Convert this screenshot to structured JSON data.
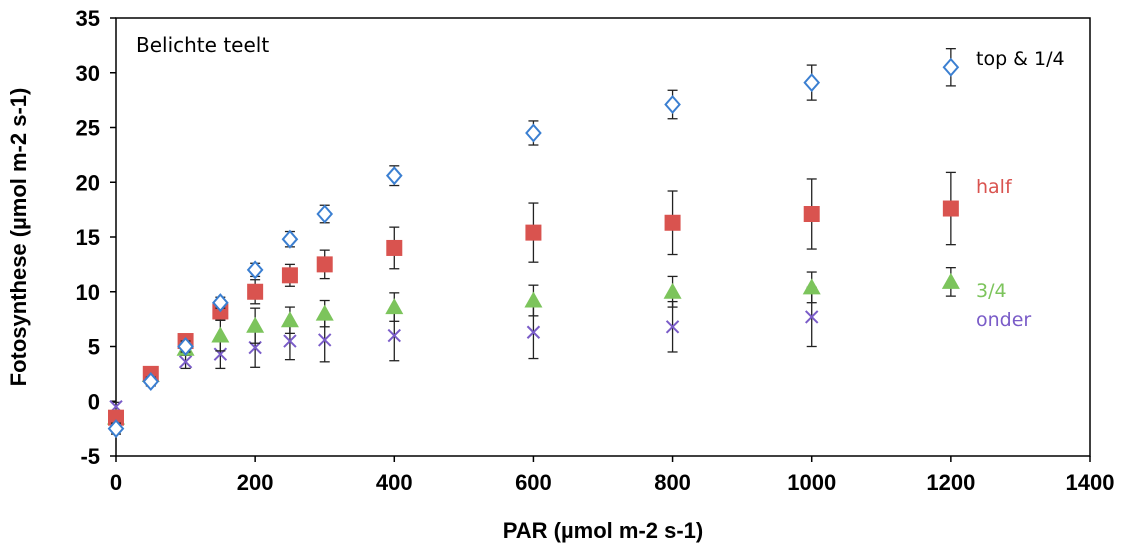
{
  "chart_data": {
    "type": "scatter",
    "title": "Belichte teelt",
    "xlabel": "PAR (µmol m-2 s-1)",
    "ylabel": "Fotosynthese (µmol m-2 s-1)",
    "xlim": [
      0,
      1400
    ],
    "ylim": [
      -5,
      35
    ],
    "x_ticks": [
      0,
      200,
      400,
      600,
      800,
      1000,
      1200,
      1400
    ],
    "y_ticks": [
      -5,
      0,
      5,
      10,
      15,
      20,
      25,
      30,
      35
    ],
    "grid": false,
    "x": [
      0,
      50,
      100,
      150,
      200,
      250,
      300,
      400,
      600,
      800,
      1000,
      1200
    ],
    "series": [
      {
        "name": "top & 1/4",
        "marker": "open-diamond",
        "color": "#3b7fd1",
        "values": [
          -2.5,
          1.8,
          5.0,
          9.0,
          12.0,
          14.8,
          17.1,
          20.6,
          24.5,
          27.1,
          29.1,
          30.5
        ],
        "errors": [
          0.5,
          0.4,
          0.5,
          0.5,
          0.6,
          0.7,
          0.8,
          0.9,
          1.1,
          1.3,
          1.6,
          1.7
        ]
      },
      {
        "name": "half",
        "marker": "square",
        "color": "#d9534f",
        "values": [
          -1.5,
          2.5,
          5.5,
          8.2,
          10.0,
          11.5,
          12.5,
          14.0,
          15.4,
          16.3,
          17.1,
          17.6
        ],
        "errors": [
          0.4,
          0.4,
          0.5,
          0.8,
          1.1,
          1.0,
          1.3,
          1.9,
          2.7,
          2.9,
          3.2,
          3.3
        ]
      },
      {
        "name": "3/4",
        "marker": "triangle",
        "color": "#7cc45c",
        "values": [
          -1.5,
          2.4,
          4.8,
          6.0,
          6.9,
          7.4,
          8.0,
          8.6,
          9.2,
          10.0,
          10.4,
          10.9
        ],
        "errors": [
          0.4,
          0.4,
          0.6,
          1.4,
          1.6,
          1.2,
          1.2,
          1.3,
          1.4,
          1.4,
          1.4,
          1.3
        ]
      },
      {
        "name": "onder",
        "marker": "x",
        "color": "#7a5cc8",
        "values": [
          -0.5,
          2.2,
          3.6,
          4.3,
          4.9,
          5.5,
          5.6,
          6.0,
          6.3,
          6.8,
          7.7,
          null
        ],
        "errors": [
          0.4,
          0.4,
          0.6,
          1.3,
          1.8,
          1.7,
          2.0,
          2.3,
          2.4,
          2.3,
          2.7,
          null
        ]
      }
    ]
  }
}
